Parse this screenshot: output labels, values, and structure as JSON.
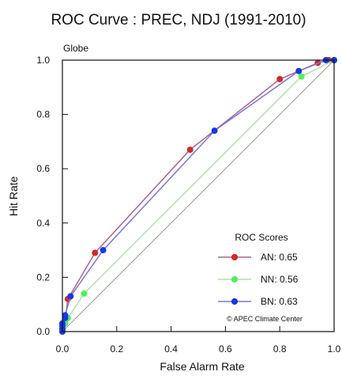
{
  "chart_data": {
    "type": "line",
    "title": "ROC Curve : PREC, NDJ (1991-2010)",
    "region_label": "Globe",
    "xlabel": "False Alarm Rate",
    "ylabel": "Hit Rate",
    "xlim": [
      0,
      1
    ],
    "ylim": [
      0,
      1
    ],
    "xticks": [
      "0.0",
      "0.2",
      "0.4",
      "0.6",
      "0.8",
      "1.0"
    ],
    "yticks": [
      "0.0",
      "0.2",
      "0.4",
      "0.6",
      "0.8",
      "1.0"
    ],
    "grid": false,
    "diagonal_reference": true,
    "legend": {
      "title": "ROC Scores",
      "placement": "bottom-right"
    },
    "credit": "© APEC Climate Center",
    "series": [
      {
        "name": "AN",
        "score_label": "AN: 0.65",
        "color": "#d62728",
        "line_color": "#b06090",
        "points": [
          [
            0.0,
            0.0
          ],
          [
            0.0,
            0.01
          ],
          [
            0.0,
            0.02
          ],
          [
            0.0,
            0.03
          ],
          [
            0.01,
            0.04
          ],
          [
            0.02,
            0.12
          ],
          [
            0.12,
            0.29
          ],
          [
            0.47,
            0.67
          ],
          [
            0.8,
            0.93
          ],
          [
            0.94,
            0.99
          ],
          [
            0.98,
            1.0
          ],
          [
            1.0,
            1.0
          ]
        ]
      },
      {
        "name": "NN",
        "score_label": "NN: 0.56",
        "color": "#4ef05a",
        "line_color": "#a7e7a2",
        "points": [
          [
            0.0,
            0.0
          ],
          [
            0.0,
            0.01
          ],
          [
            0.0,
            0.02
          ],
          [
            0.01,
            0.03
          ],
          [
            0.02,
            0.05
          ],
          [
            0.08,
            0.14
          ],
          [
            0.88,
            0.94
          ],
          [
            1.0,
            1.0
          ]
        ]
      },
      {
        "name": "BN",
        "score_label": "BN: 0.63",
        "color": "#1736e6",
        "line_color": "#7a77d8",
        "points": [
          [
            0.0,
            0.0
          ],
          [
            0.0,
            0.01
          ],
          [
            0.0,
            0.02
          ],
          [
            0.0,
            0.03
          ],
          [
            0.01,
            0.05
          ],
          [
            0.01,
            0.06
          ],
          [
            0.03,
            0.13
          ],
          [
            0.15,
            0.3
          ],
          [
            0.56,
            0.74
          ],
          [
            0.87,
            0.96
          ],
          [
            0.97,
            1.0
          ],
          [
            1.0,
            1.0
          ]
        ]
      }
    ]
  }
}
